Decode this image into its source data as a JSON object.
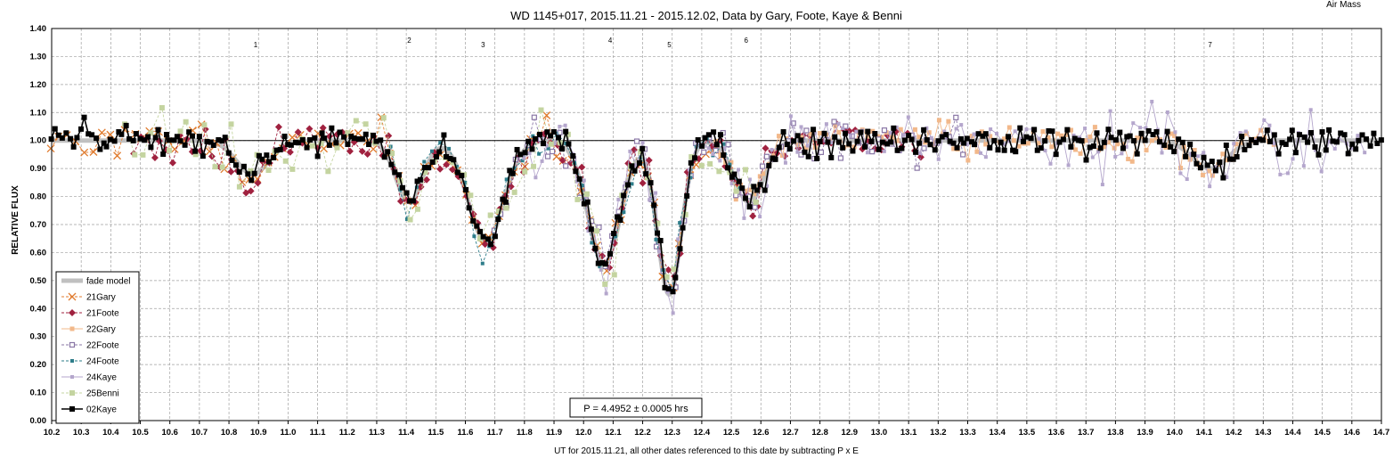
{
  "chart_data": {
    "type": "line",
    "title": "WD 1145+017, 2015.11.21 - 2015.12.02, Data by Gary, Foote, Kaye & Benni",
    "corner_label": "Air Mass",
    "xlabel": "UT for 2015.11.21, all other dates referenced to this date by subtracting P x E",
    "ylabel": "RELATIVE FLUX",
    "xlim": [
      10.2,
      14.7
    ],
    "ylim": [
      0.0,
      1.4
    ],
    "x_ticks": [
      "10.2",
      "10.3",
      "10.4",
      "10.5",
      "10.6",
      "10.7",
      "10.8",
      "10.9",
      "11.0",
      "11.1",
      "11.2",
      "11.3",
      "11.4",
      "11.5",
      "11.6",
      "11.7",
      "11.8",
      "11.9",
      "12.0",
      "12.1",
      "12.2",
      "12.3",
      "12.4",
      "12.5",
      "12.6",
      "12.7",
      "12.8",
      "12.9",
      "13.0",
      "13.1",
      "13.2",
      "13.3",
      "13.4",
      "13.5",
      "13.6",
      "13.7",
      "13.8",
      "13.9",
      "14.0",
      "14.1",
      "14.2",
      "14.3",
      "14.4",
      "14.5",
      "14.6",
      "14.7"
    ],
    "y_ticks": [
      "0.00",
      "0.10",
      "0.20",
      "0.30",
      "0.40",
      "0.50",
      "0.60",
      "0.70",
      "0.80",
      "0.90",
      "1.00",
      "1.10",
      "1.20",
      "1.30",
      "1.40"
    ],
    "grid": true,
    "legend_position": "bottom-left",
    "reference_line": 1.0,
    "period_label": "P = 4.4952 ± 0.0005 hrs",
    "annotations": [
      {
        "label": "1",
        "x": 10.89
      },
      {
        "label": "2",
        "x": 11.41
      },
      {
        "label": "3",
        "x": 11.66
      },
      {
        "label": "4",
        "x": 12.09
      },
      {
        "label": "5",
        "x": 12.29
      },
      {
        "label": "6",
        "x": 12.55
      },
      {
        "label": "7",
        "x": 14.12
      }
    ],
    "dips": [
      {
        "center": 10.88,
        "depth": 0.12,
        "width": 0.055
      },
      {
        "center": 11.41,
        "depth": 0.22,
        "width": 0.045
      },
      {
        "center": 11.67,
        "depth": 0.36,
        "width": 0.06
      },
      {
        "center": 12.07,
        "depth": 0.44,
        "width": 0.055
      },
      {
        "center": 12.29,
        "depth": 0.55,
        "width": 0.04
      },
      {
        "center": 12.56,
        "depth": 0.22,
        "width": 0.05
      },
      {
        "center": 14.12,
        "depth": 0.1,
        "width": 0.06
      }
    ],
    "series": [
      {
        "name": "fade model",
        "color": "#c0c0c0",
        "style": "model"
      },
      {
        "name": "21Gary",
        "color": "#e07b2e",
        "style": "x",
        "range": [
          10.2,
          12.55
        ],
        "step": 0.028,
        "noise": 0.05,
        "seed": 11
      },
      {
        "name": "21Foote",
        "color": "#a0213f",
        "style": "diamond",
        "range": [
          10.48,
          13.15
        ],
        "step": 0.022,
        "noise": 0.06,
        "seed": 23
      },
      {
        "name": "22Gary",
        "color": "#f2b88a",
        "style": "square",
        "range": [
          12.45,
          14.35
        ],
        "step": 0.016,
        "noise": 0.05,
        "seed": 37
      },
      {
        "name": "22Foote",
        "color": "#8a77a6",
        "style": "opensquare",
        "range": [
          11.7,
          13.3
        ],
        "step": 0.022,
        "noise": 0.07,
        "seed": 41
      },
      {
        "name": "24Foote",
        "color": "#2e7d8a",
        "style": "smallsquare",
        "range": [
          11.35,
          12.55
        ],
        "step": 0.028,
        "noise": 0.06,
        "seed": 53
      },
      {
        "name": "24Kaye",
        "color": "#b4a6cc",
        "style": "smallsquare",
        "range": [
          11.8,
          14.65
        ],
        "step": 0.02,
        "noise": 0.09,
        "seed": 67
      },
      {
        "name": "25Benni",
        "color": "#c4d4a0",
        "style": "bigsquare",
        "range": [
          10.45,
          12.6
        ],
        "step": 0.03,
        "noise": 0.09,
        "seed": 79
      },
      {
        "name": "02Kaye",
        "color": "#000000",
        "style": "blacksquare",
        "range": [
          10.2,
          14.7
        ],
        "step": 0.0125,
        "noise": 0.045,
        "seed": 97
      }
    ]
  }
}
